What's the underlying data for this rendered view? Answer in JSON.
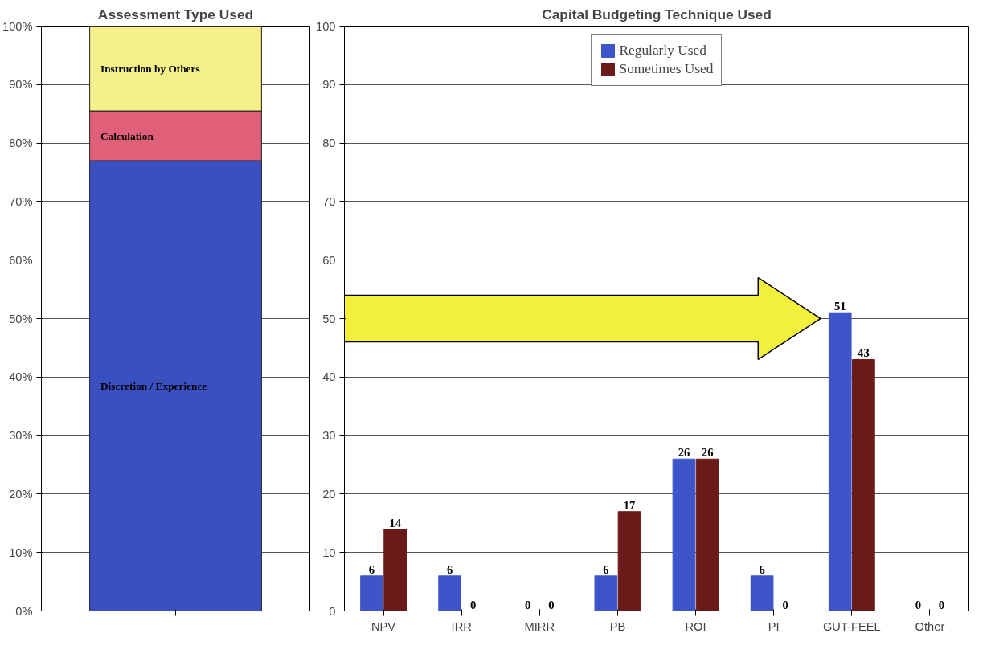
{
  "chart_data": [
    {
      "type": "bar",
      "title": "Assessment Type Used",
      "stacked": true,
      "categories": [
        null
      ],
      "ylim": [
        0,
        100
      ],
      "yticks": [
        {
          "value": 0,
          "label": "0%"
        },
        {
          "value": 10,
          "label": "10%"
        },
        {
          "value": 20,
          "label": "20%"
        },
        {
          "value": 30,
          "label": "30%"
        },
        {
          "value": 40,
          "label": "40%"
        },
        {
          "value": 50,
          "label": "50%"
        },
        {
          "value": 60,
          "label": "60%"
        },
        {
          "value": 70,
          "label": "70%"
        },
        {
          "value": 80,
          "label": "80%"
        },
        {
          "value": 90,
          "label": "90%"
        },
        {
          "value": 100,
          "label": "100%"
        }
      ],
      "grid": "y",
      "legend": false,
      "series": [
        {
          "name": "Discretion / Experience",
          "color": "#3a4fc0",
          "values": [
            77
          ]
        },
        {
          "name": "Calculation",
          "color": "#e0607a",
          "values": [
            8.5
          ]
        },
        {
          "name": "Instruction by Others",
          "color": "#f5f08a",
          "values": [
            14.5
          ]
        }
      ]
    },
    {
      "type": "bar",
      "title": "Capital Budgeting Technique Used",
      "categories": [
        "NPV",
        "IRR",
        "MIRR",
        "PB",
        "ROI",
        "PI",
        "GUT-FEEL",
        "Other"
      ],
      "ylim": [
        0,
        100
      ],
      "yticks": [
        0,
        10,
        20,
        30,
        40,
        50,
        60,
        70,
        80,
        90,
        100
      ],
      "grid": "y",
      "legend": "top",
      "data_labels": true,
      "series": [
        {
          "name": "Regularly Used",
          "color": "#3d55c8",
          "values": [
            6,
            6,
            0,
            6,
            26,
            6,
            51,
            0
          ]
        },
        {
          "name": "Sometimes Used",
          "color": "#6b1a1a",
          "values": [
            14,
            0,
            0,
            17,
            26,
            0,
            43,
            0
          ]
        }
      ]
    }
  ]
}
